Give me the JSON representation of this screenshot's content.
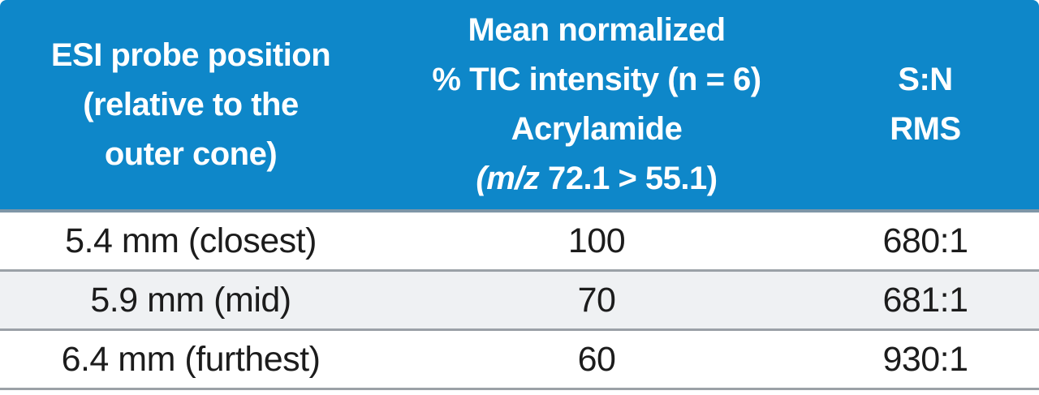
{
  "table": {
    "columns": [
      {
        "id": "probe_position",
        "lines": [
          "ESI probe position",
          "(relative to the",
          "outer cone)"
        ]
      },
      {
        "id": "tic_intensity",
        "lines": [
          "Mean normalized",
          "% TIC intensity (n = 6)",
          "Acrylamide"
        ],
        "mz_line": {
          "italic": "(m/z",
          "rest": " 72.1 > 55.1)"
        }
      },
      {
        "id": "sn_rms",
        "lines": [
          "S:N",
          "RMS"
        ]
      }
    ],
    "rows": [
      {
        "cells": [
          "5.4 mm (closest)",
          "100",
          "680:1"
        ]
      },
      {
        "cells": [
          "5.9 mm (mid)",
          "70",
          "681:1"
        ]
      },
      {
        "cells": [
          "6.4 mm (furthest)",
          "60",
          "930:1"
        ]
      }
    ],
    "colors": {
      "header_bg": "#0E87C9",
      "header_text": "#FFFFFF",
      "header_bottom_edge": "#7E96A7",
      "row_alt_bg": "#EFF1F3",
      "row_separator": "#9BA1A7",
      "body_text": "#1C1C1C"
    }
  }
}
